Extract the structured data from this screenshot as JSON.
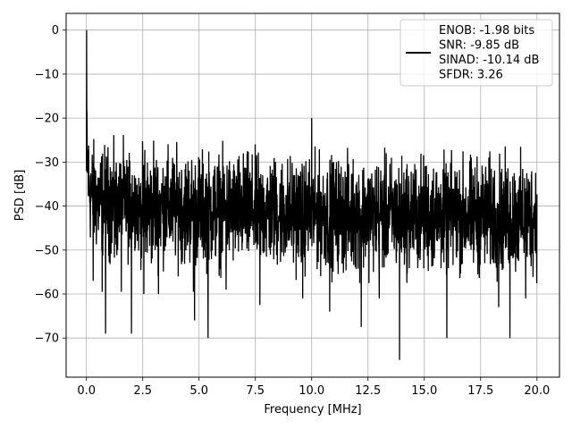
{
  "chart_data": {
    "type": "line",
    "xlabel": "Frequency [MHz]",
    "ylabel": "PSD [dB]",
    "xlim": [
      -0.9,
      21.0
    ],
    "ylim": [
      -78.9,
      3.8
    ],
    "x_ticks": [
      0.0,
      2.5,
      5.0,
      7.5,
      10.0,
      12.5,
      15.0,
      17.5,
      20.0
    ],
    "x_tick_labels": [
      "0.0",
      "2.5",
      "5.0",
      "7.5",
      "10.0",
      "12.5",
      "15.0",
      "17.5",
      "20.0"
    ],
    "y_ticks": [
      0,
      -10,
      -20,
      -30,
      -40,
      -50,
      -60,
      -70
    ],
    "y_tick_labels": [
      "0",
      "−10",
      "−20",
      "−30",
      "−40",
      "−50",
      "−60",
      "−70"
    ],
    "grid": true,
    "legend_placement": "upper-right",
    "legend_lines": [
      "ENOB: -1.98 bits",
      "SNR: -9.85 dB",
      "SINAD: -10.14 dB",
      "SFDR: 3.26"
    ],
    "series": [
      {
        "color": "#000000",
        "description_points": {
          "x": [
            0.0,
            0.05,
            0.1,
            0.2,
            0.5,
            1.0,
            2.0,
            4.0,
            6.0,
            8.0,
            10.0,
            12.0,
            14.0,
            16.0,
            18.0,
            20.0
          ],
          "y_upper": [
            0.0,
            -15.0,
            -19.0,
            -22.0,
            -23.5,
            -23.5,
            -24.0,
            -24.5,
            -25.0,
            -25.5,
            -26.0,
            -26.0,
            -26.0,
            -26.0,
            -26.0,
            -26.0
          ],
          "y_lower": [
            -33.0,
            -48.0,
            -50.0,
            -52.0,
            -54.0,
            -55.0,
            -56.0,
            -56.0,
            -57.0,
            -57.0,
            -57.5,
            -58.0,
            -58.0,
            -58.0,
            -58.5,
            -58.5
          ]
        },
        "peaks": [
          {
            "x": 0.0,
            "y": 0.0
          },
          {
            "x": 10.0,
            "y": -20.0
          }
        ],
        "dips": [
          {
            "x": 0.3,
            "y": -57.0
          },
          {
            "x": 0.7,
            "y": -59.5
          },
          {
            "x": 0.85,
            "y": -69.0
          },
          {
            "x": 1.55,
            "y": -59.5
          },
          {
            "x": 2.0,
            "y": -69.0
          },
          {
            "x": 2.55,
            "y": -60.0
          },
          {
            "x": 3.2,
            "y": -60.0
          },
          {
            "x": 4.75,
            "y": -59.5
          },
          {
            "x": 4.8,
            "y": -66.0
          },
          {
            "x": 5.4,
            "y": -70.0
          },
          {
            "x": 6.2,
            "y": -59.0
          },
          {
            "x": 7.7,
            "y": -62.5
          },
          {
            "x": 9.6,
            "y": -61.0
          },
          {
            "x": 10.8,
            "y": -64.0
          },
          {
            "x": 12.2,
            "y": -67.5
          },
          {
            "x": 13.0,
            "y": -61.0
          },
          {
            "x": 13.9,
            "y": -75.0
          },
          {
            "x": 16.0,
            "y": -70.0
          },
          {
            "x": 18.3,
            "y": -63.0
          },
          {
            "x": 18.8,
            "y": -70.0
          },
          {
            "x": 19.5,
            "y": -61.0
          }
        ]
      }
    ]
  }
}
